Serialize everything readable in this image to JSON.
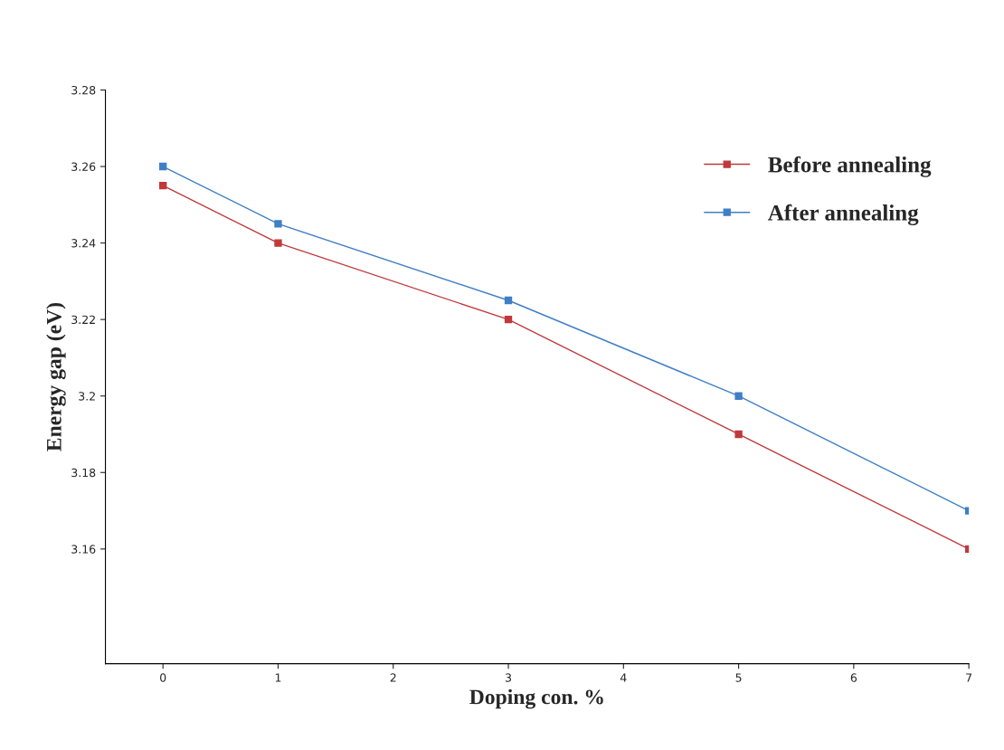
{
  "chart_data": {
    "type": "line",
    "xlabel": "Doping con. %",
    "ylabel": "Energy gap (eV)",
    "x": [
      0,
      1,
      3,
      5,
      7
    ],
    "series": [
      {
        "name": "Before annealing",
        "color": "#c0393b",
        "values": [
          3.255,
          3.24,
          3.22,
          3.19,
          3.16
        ]
      },
      {
        "name": "After annealing",
        "color": "#3f7fc6",
        "values": [
          3.26,
          3.245,
          3.225,
          3.2,
          3.17
        ]
      }
    ],
    "xlim": [
      -0.5,
      7
    ],
    "xticks": [
      0,
      1,
      2,
      3,
      4,
      5,
      6,
      7
    ],
    "ylim": [
      3.13,
      3.28
    ],
    "yticks": [
      3.16,
      3.18,
      {
        "value": 3.2,
        "label": "3.2"
      },
      3.22,
      3.24,
      3.26,
      3.28
    ],
    "grid": false,
    "legend": "top right",
    "marker": "square",
    "line_style": "solid"
  }
}
